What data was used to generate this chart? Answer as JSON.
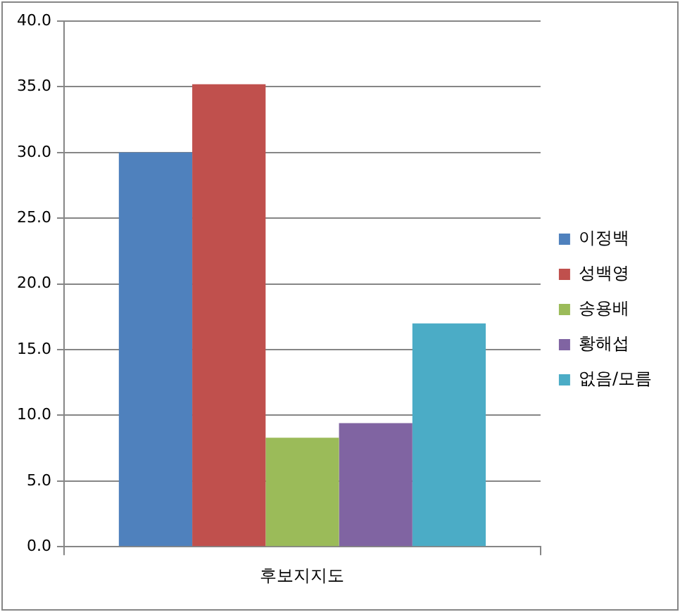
{
  "chart_data": {
    "type": "bar",
    "categories": [
      "후보지지도"
    ],
    "series": [
      {
        "name": "이정백",
        "color": "#4f81bd",
        "values": [
          30.0
        ]
      },
      {
        "name": "성백영",
        "color": "#c0504d",
        "values": [
          35.2
        ]
      },
      {
        "name": "송용배",
        "color": "#9bbb59",
        "values": [
          8.3
        ]
      },
      {
        "name": "황해섭",
        "color": "#8064a2",
        "values": [
          9.4
        ]
      },
      {
        "name": "없음/모름",
        "color": "#4bacc6",
        "values": [
          17.0
        ]
      }
    ],
    "ylim": [
      0,
      40
    ],
    "yticks": [
      {
        "value": 0,
        "label": "0.0"
      },
      {
        "value": 5,
        "label": "5.0"
      },
      {
        "value": 10,
        "label": "10.0"
      },
      {
        "value": 15,
        "label": "15.0"
      },
      {
        "value": 20,
        "label": "20.0"
      },
      {
        "value": 25,
        "label": "25.0"
      },
      {
        "value": 30,
        "label": "30.0"
      },
      {
        "value": 35,
        "label": "35.0"
      },
      {
        "value": 40,
        "label": "40.0"
      }
    ],
    "grid": "y",
    "legend": "right"
  }
}
